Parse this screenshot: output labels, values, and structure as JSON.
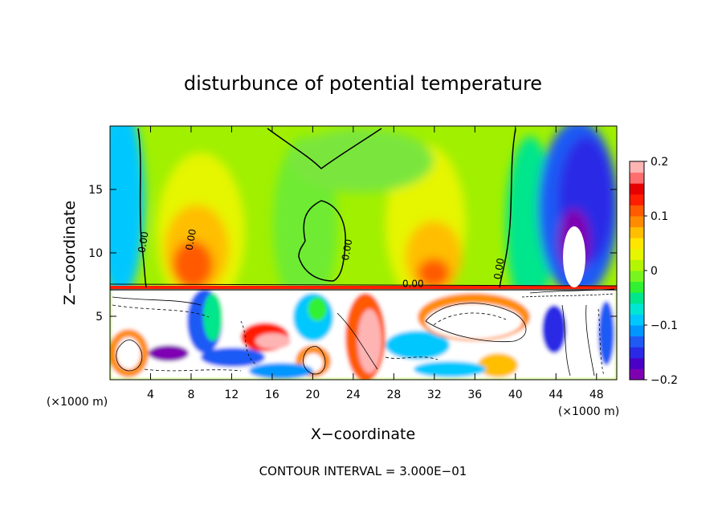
{
  "chart_data": {
    "type": "heatmap",
    "title": "disturbunce of potential temperature",
    "xlabel": "X−coordinate",
    "ylabel": "Z−coordinate",
    "x_unit": "(×1000 m)",
    "x_unit_right": "(×1000 m)",
    "footer": "CONTOUR INTERVAL = 3.000E−01",
    "xlim": [
      0,
      50
    ],
    "ylim": [
      0,
      20
    ],
    "x_ticks": [
      4,
      8,
      12,
      16,
      20,
      24,
      28,
      32,
      36,
      40,
      44,
      48
    ],
    "y_ticks": [
      5,
      10,
      15
    ],
    "colorbar": {
      "range": [
        -0.2,
        0.2
      ],
      "tick_values": [
        0.2,
        0.1,
        0,
        -0.1,
        -0.2
      ],
      "tick_labels": [
        "0.2",
        "0.1",
        "0",
        "−0.1",
        "−0.2"
      ],
      "colors": [
        "#7f00b2",
        "#4b00c8",
        "#2a2ae6",
        "#1f5af5",
        "#0096ff",
        "#00c8ff",
        "#00e6d2",
        "#00e68c",
        "#32f032",
        "#78f51e",
        "#b4f500",
        "#e6f500",
        "#ffe600",
        "#ffbe00",
        "#ff8c00",
        "#ff5a00",
        "#ff1e00",
        "#e60000",
        "#ff6e6e",
        "#ffb4b4"
      ]
    },
    "contour_labels": [
      {
        "x": 8.3,
        "y": 11.0,
        "text": "0.00"
      },
      {
        "x": 3.6,
        "y": 10.8,
        "text": "0.00"
      },
      {
        "x": 23.7,
        "y": 10.2,
        "text": "0.00"
      },
      {
        "x": 29.9,
        "y": 7.3,
        "text": "0.00"
      },
      {
        "x": 38.7,
        "y": 8.7,
        "text": "0.00"
      }
    ],
    "grid": false
  }
}
